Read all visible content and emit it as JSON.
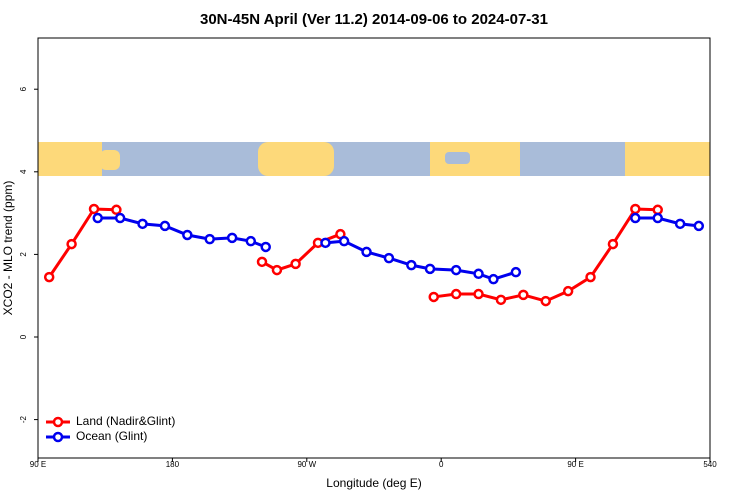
{
  "chart_data": {
    "type": "line",
    "title": "30N-45N April (Ver 11.2)   2014-09-06 to 2024-07-31",
    "x_label": "Longitude (deg E)",
    "y_label": "XCO2 - MLO trend (ppm)",
    "xlim": [
      90,
      540
    ],
    "xticks": [
      {
        "value": 90,
        "label": "90 E"
      },
      180,
      {
        "value": 270,
        "label": "90 W"
      },
      {
        "value": 360,
        "label": "0"
      },
      {
        "value": 450,
        "label": "90 E"
      },
      540
    ],
    "ylim": [
      -2.93,
      7.24
    ],
    "yticks": [
      -2,
      0,
      2,
      4,
      6
    ],
    "legend": "bottom-left",
    "series": [
      {
        "name": "Land (Nadir&Glint)",
        "color": "#ff0000",
        "x": [
          97.5,
          112.5,
          127.5,
          142.5,
          null,
          240,
          250,
          262.5,
          277.5,
          292.5,
          null,
          355,
          370,
          385,
          400,
          415,
          430,
          445,
          460,
          475,
          490,
          505
        ],
        "values": [
          1.45,
          2.25,
          3.1,
          3.08,
          null,
          1.82,
          1.62,
          1.77,
          2.28,
          2.49,
          null,
          0.97,
          1.04,
          1.04,
          0.9,
          1.02,
          0.87,
          1.11,
          1.45,
          2.25,
          3.1,
          3.08
        ]
      },
      {
        "name": "Ocean (Glint)",
        "color": "#0000ee",
        "x": [
          130,
          145,
          160,
          175,
          190,
          205,
          220,
          232.5,
          242.5,
          null,
          282.5,
          295,
          310,
          325,
          340,
          352.5,
          370,
          385,
          395,
          410,
          null,
          490,
          505,
          520,
          532.5
        ],
        "values": [
          2.88,
          2.88,
          2.74,
          2.69,
          2.47,
          2.37,
          2.4,
          2.32,
          2.18,
          null,
          2.28,
          2.32,
          2.06,
          1.91,
          1.74,
          1.65,
          1.62,
          1.53,
          1.4,
          1.57,
          null,
          2.88,
          2.88,
          2.74,
          2.69
        ]
      }
    ]
  }
}
